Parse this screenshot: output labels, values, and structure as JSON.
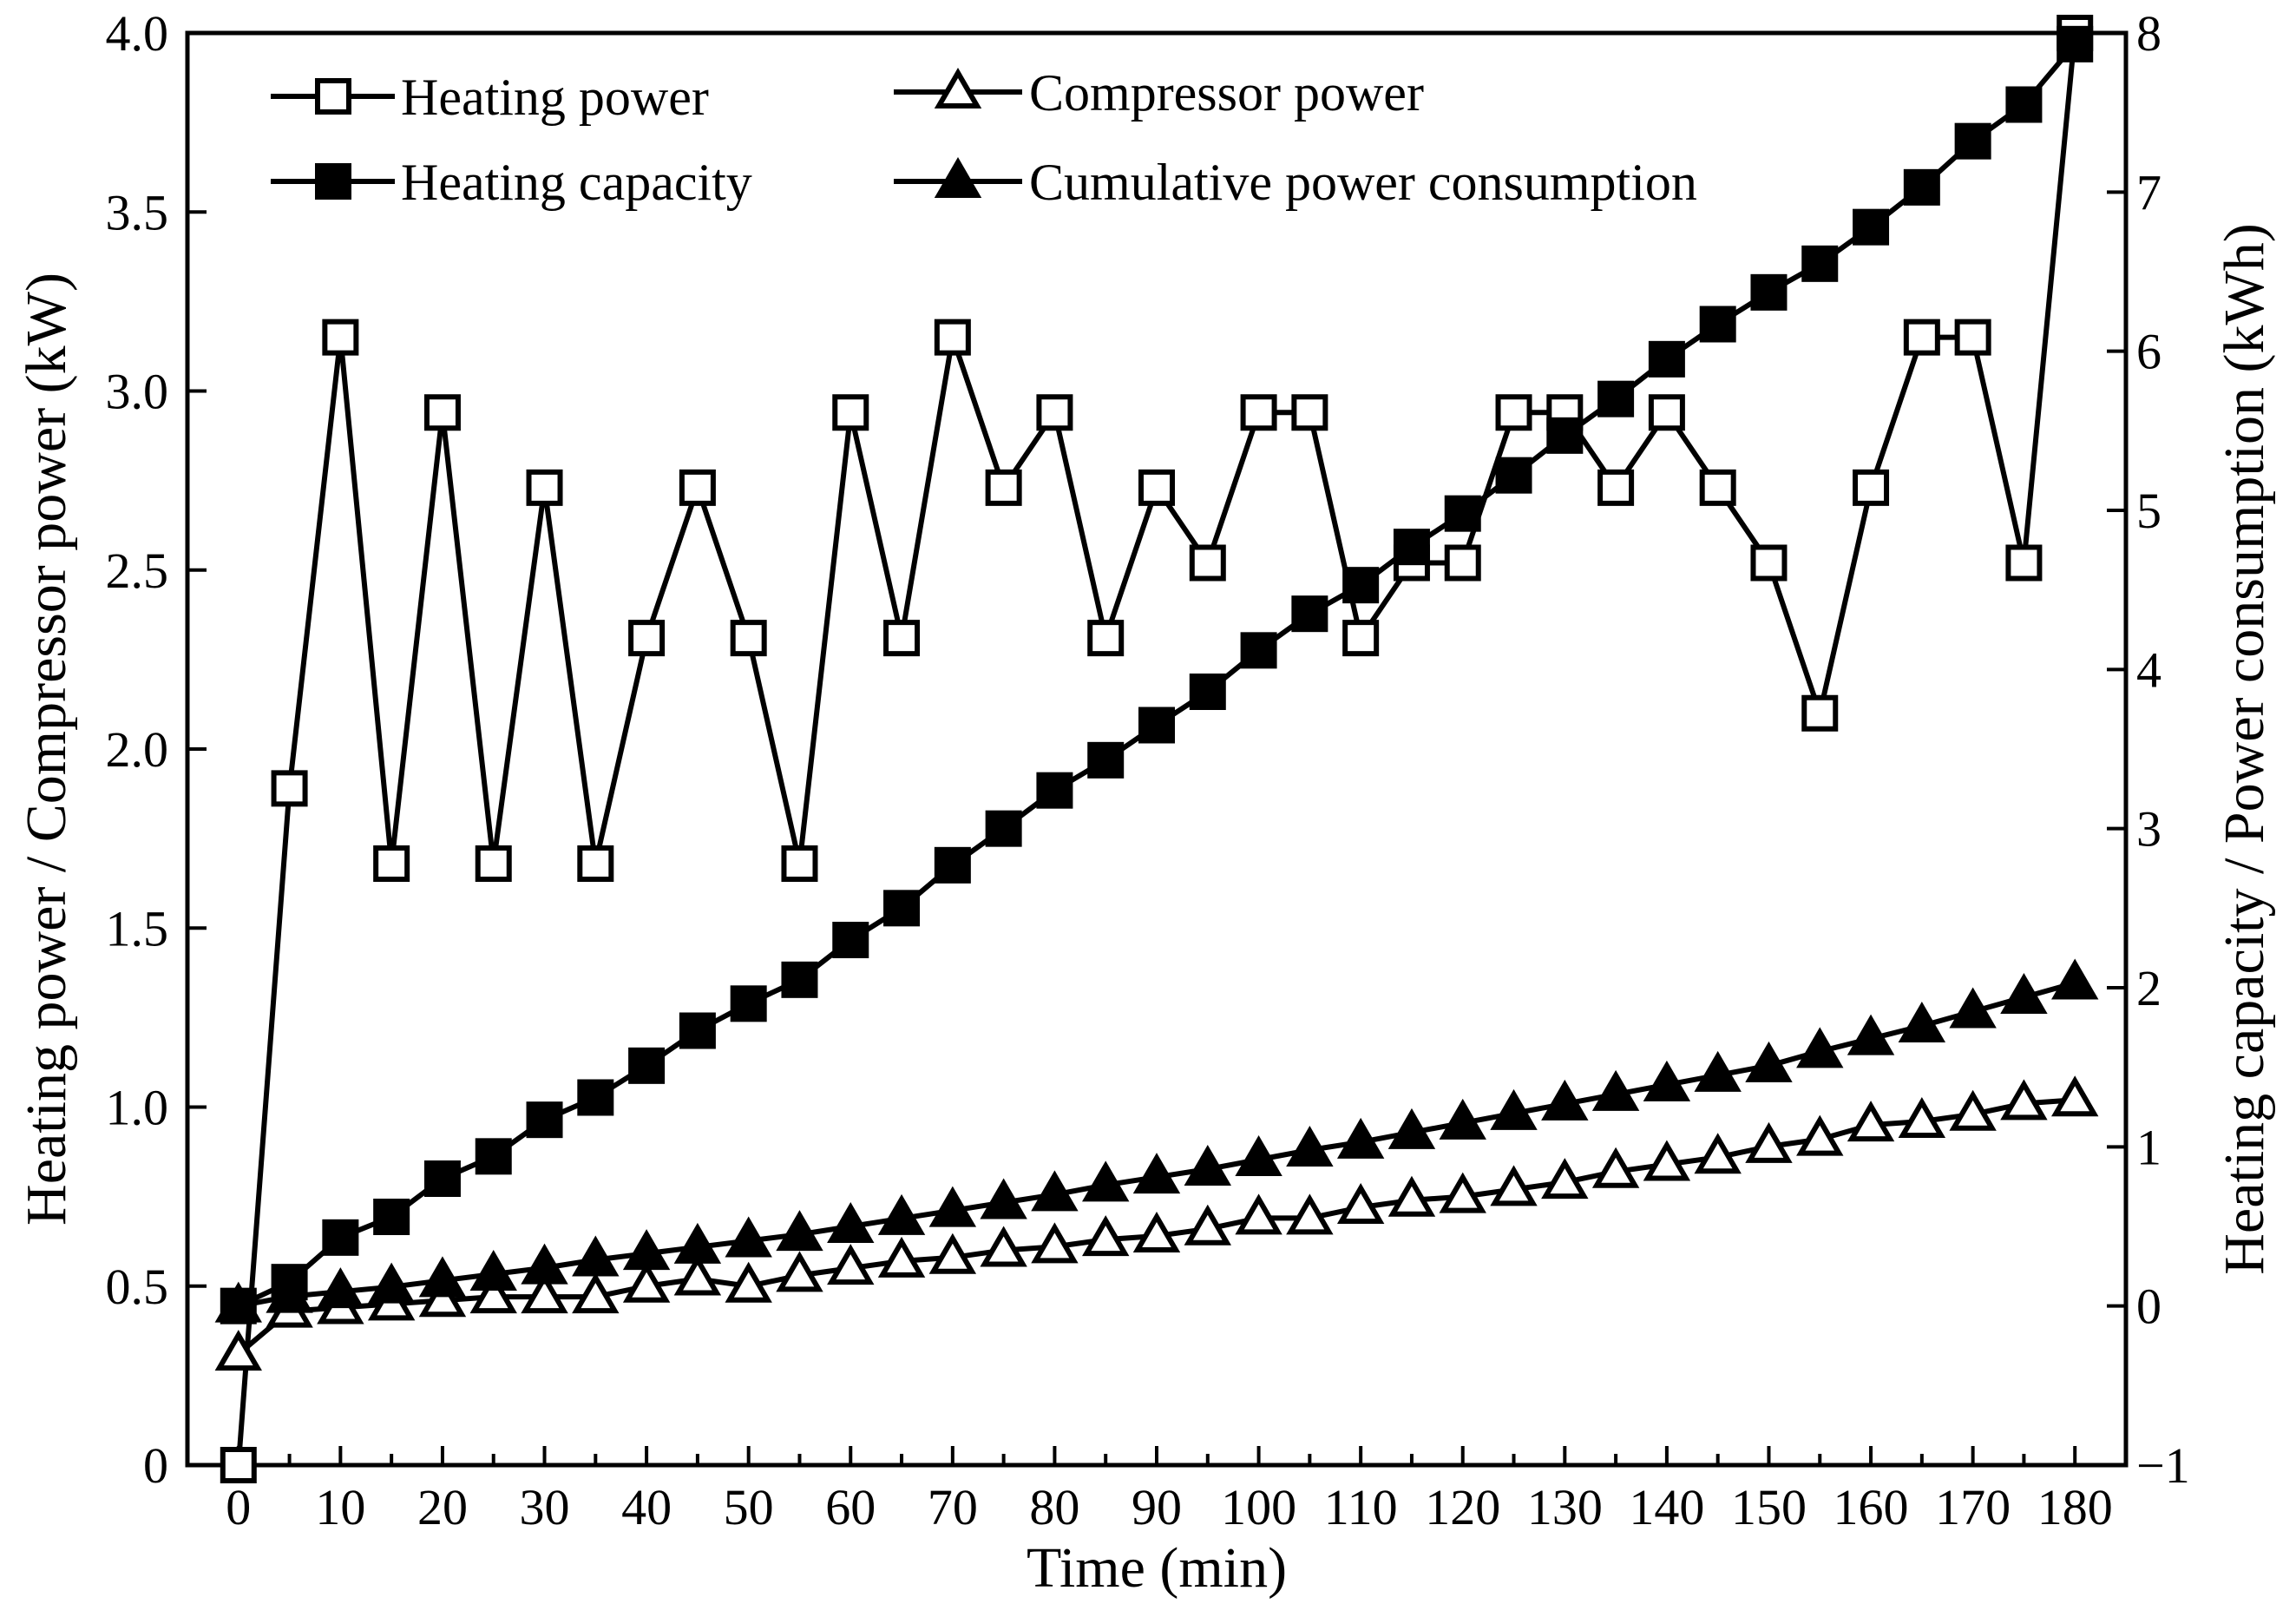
{
  "chart_data": {
    "type": "line",
    "title": "",
    "xlabel": "Time (min)",
    "ylabel_left": "Heating power / Compressor power (kW)",
    "ylabel_right": "Heating capacity / Power consumption (kWh)",
    "xlim": [
      -5,
      185
    ],
    "ylim_left": [
      0,
      4.0
    ],
    "ylim_right": [
      -1,
      8
    ],
    "x_ticks": [
      "0",
      "10",
      "20",
      "30",
      "40",
      "50",
      "60",
      "70",
      "80",
      "90",
      "100",
      "110",
      "120",
      "130",
      "140",
      "150",
      "160",
      "170",
      "180"
    ],
    "y_left_ticks": [
      "0",
      "0.5",
      "1.0",
      "1.5",
      "2.0",
      "2.5",
      "3.0",
      "3.5",
      "4.0"
    ],
    "y_right_ticks": [
      "−1",
      "0",
      "1",
      "2",
      "3",
      "4",
      "5",
      "6",
      "7",
      "8"
    ],
    "x": [
      0,
      5,
      10,
      15,
      20,
      25,
      30,
      35,
      40,
      45,
      50,
      55,
      60,
      65,
      70,
      75,
      80,
      85,
      90,
      95,
      100,
      105,
      110,
      115,
      120,
      125,
      130,
      135,
      140,
      145,
      150,
      155,
      160,
      165,
      170,
      175,
      180
    ],
    "series": [
      {
        "name": "Heating power",
        "axis": "left",
        "marker": "open-square",
        "values": [
          0,
          1.89,
          3.15,
          1.68,
          2.94,
          1.68,
          2.73,
          1.68,
          2.31,
          2.73,
          2.31,
          1.68,
          2.94,
          2.31,
          3.15,
          2.73,
          2.94,
          2.31,
          2.73,
          2.52,
          2.94,
          2.94,
          2.31,
          2.52,
          2.52,
          2.94,
          2.94,
          2.73,
          2.94,
          2.73,
          2.52,
          2.1,
          2.73,
          3.15,
          3.15,
          2.52,
          4.0
        ]
      },
      {
        "name": "Compressor power",
        "axis": "left",
        "marker": "open-triangle",
        "values": [
          0.31,
          0.43,
          0.44,
          0.45,
          0.46,
          0.47,
          0.47,
          0.47,
          0.5,
          0.52,
          0.5,
          0.53,
          0.55,
          0.57,
          0.58,
          0.6,
          0.61,
          0.63,
          0.64,
          0.66,
          0.69,
          0.69,
          0.72,
          0.74,
          0.75,
          0.77,
          0.79,
          0.82,
          0.84,
          0.86,
          0.89,
          0.91,
          0.95,
          0.96,
          0.98,
          1.01,
          1.02
        ]
      },
      {
        "name": "Heating capacity",
        "axis": "right",
        "marker": "filled-square",
        "values": [
          0,
          0.15,
          0.43,
          0.56,
          0.8,
          0.94,
          1.17,
          1.31,
          1.51,
          1.73,
          1.9,
          2.05,
          2.3,
          2.5,
          2.77,
          3.0,
          3.24,
          3.43,
          3.65,
          3.86,
          4.12,
          4.35,
          4.53,
          4.77,
          4.98,
          5.22,
          5.47,
          5.7,
          5.95,
          6.17,
          6.37,
          6.55,
          6.78,
          7.03,
          7.32,
          7.55,
          7.93
        ]
      },
      {
        "name": "Cumulative power consumption",
        "axis": "right",
        "marker": "filled-triangle",
        "values": [
          0,
          0.06,
          0.09,
          0.12,
          0.16,
          0.2,
          0.24,
          0.29,
          0.33,
          0.37,
          0.41,
          0.45,
          0.5,
          0.55,
          0.6,
          0.65,
          0.7,
          0.76,
          0.81,
          0.86,
          0.92,
          0.98,
          1.03,
          1.09,
          1.15,
          1.21,
          1.27,
          1.33,
          1.39,
          1.45,
          1.51,
          1.6,
          1.68,
          1.76,
          1.85,
          1.94,
          2.03
        ]
      }
    ],
    "legend": {
      "placement": "top-left",
      "entries": [
        "Heating power",
        "Compressor power",
        "Heating capacity",
        "Cumulative power consumption"
      ]
    },
    "grid": false
  }
}
